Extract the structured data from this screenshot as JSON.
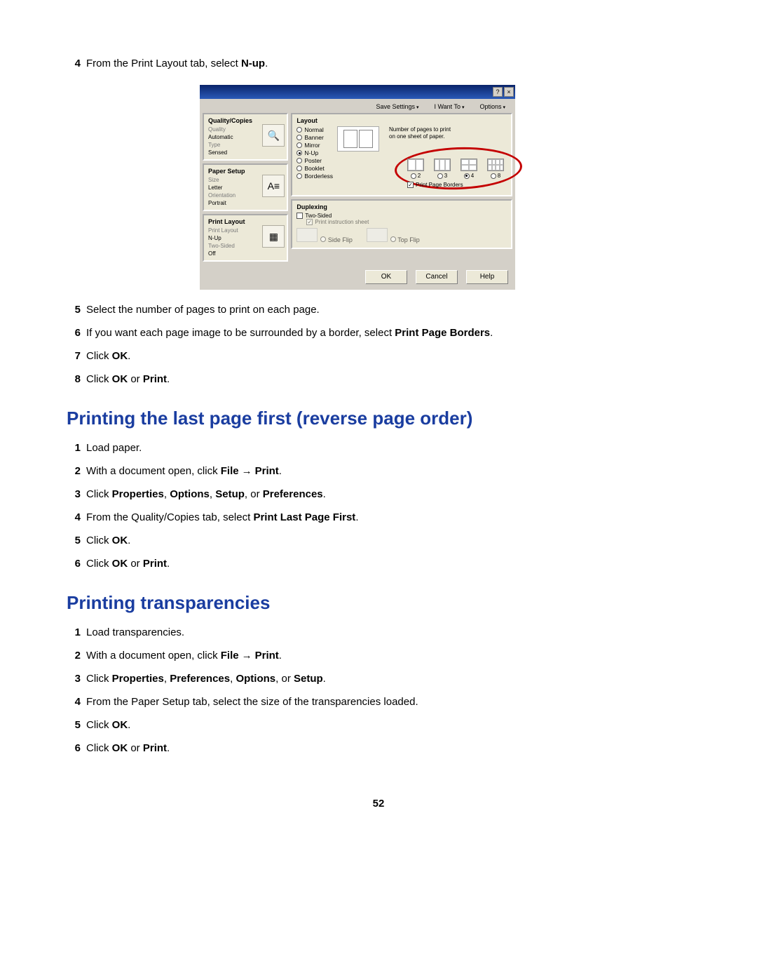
{
  "top_steps": [
    {
      "n": "4",
      "pre": "From the Print Layout tab, select ",
      "b": "N-up",
      "post": "."
    },
    {
      "n": "5",
      "pre": "Select the number of pages to print on each page.",
      "b": "",
      "post": ""
    },
    {
      "n": "6",
      "pre": "If you want each page image to be surrounded by a border, select ",
      "b": "Print Page Borders",
      "post": "."
    },
    {
      "n": "7",
      "pre": "Click ",
      "b": "OK",
      "post": "."
    },
    {
      "n": "8",
      "pre": "Click ",
      "b": "OK",
      "mid": " or ",
      "b2": "Print",
      "post": "."
    }
  ],
  "heading_reverse": "Printing the last page first (reverse page order)",
  "reverse_steps": [
    {
      "n": "1",
      "pre": "Load paper.",
      "b": "",
      "post": ""
    },
    {
      "n": "2",
      "pre": "With a document open, click ",
      "b": "File",
      "arrow": true,
      "b2": "Print",
      "post": "."
    },
    {
      "n": "3",
      "pre": "Click ",
      "b": "Properties",
      "mid": ", ",
      "b2": "Options",
      "mid2": ", ",
      "b3": "Setup",
      "mid3": ", or ",
      "b4": "Preferences",
      "post": "."
    },
    {
      "n": "4",
      "pre": "From the Quality/Copies tab, select ",
      "b": "Print Last Page First",
      "post": "."
    },
    {
      "n": "5",
      "pre": "Click ",
      "b": "OK",
      "post": "."
    },
    {
      "n": "6",
      "pre": "Click ",
      "b": "OK",
      "mid": " or ",
      "b2": "Print",
      "post": "."
    }
  ],
  "heading_trans": "Printing transparencies",
  "trans_steps": [
    {
      "n": "1",
      "pre": "Load transparencies.",
      "b": "",
      "post": ""
    },
    {
      "n": "2",
      "pre": "With a document open, click ",
      "b": "File",
      "arrow": true,
      "b2": "Print",
      "post": "."
    },
    {
      "n": "3",
      "pre": "Click ",
      "b": "Properties",
      "mid": ", ",
      "b2": "Preferences",
      "mid2": ", ",
      "b3": "Options",
      "mid3": ", or ",
      "b4": "Setup",
      "post": "."
    },
    {
      "n": "4",
      "pre": "From the Paper Setup tab, select the size of the transparencies loaded.",
      "b": "",
      "post": ""
    },
    {
      "n": "5",
      "pre": "Click ",
      "b": "OK",
      "post": "."
    },
    {
      "n": "6",
      "pre": "Click ",
      "b": "OK",
      "mid": " or ",
      "b2": "Print",
      "post": "."
    }
  ],
  "page_number": "52",
  "dialog": {
    "topmenu": [
      "Save Settings",
      "I Want To",
      "Options"
    ],
    "side": {
      "qc_title": "Quality/Copies",
      "qc_l1": "Quality",
      "qc_l2": "Automatic",
      "qc_l3": "Type",
      "qc_l4": "Sensed",
      "ps_title": "Paper Setup",
      "ps_l1": "Size",
      "ps_l2": "Letter",
      "ps_l3": "Orientation",
      "ps_l4": "Portrait",
      "pl_title": "Print Layout",
      "pl_l1": "Print Layout",
      "pl_l2": "N-Up",
      "pl_l3": "Two-Sided",
      "pl_l4": "Off"
    },
    "layout": {
      "group": "Layout",
      "opts": [
        "Normal",
        "Banner",
        "Mirror",
        "N-Up",
        "Poster",
        "Booklet",
        "Borderless"
      ],
      "desc": "Number of pages to print on one sheet of paper.",
      "nup_vals": [
        "2",
        "3",
        "4",
        "8"
      ],
      "ppb": "Print Page Borders"
    },
    "duplex": {
      "group": "Duplexing",
      "two": "Two-Sided",
      "instr": "Print instruction sheet",
      "side_flip": "Side Flip",
      "top_flip": "Top Flip"
    },
    "buttons": {
      "ok": "OK",
      "cancel": "Cancel",
      "help": "Help"
    }
  },
  "colors": {
    "heading": "#1a3da0",
    "ring": "#c40000",
    "titlebar_a": "#0a246a",
    "titlebar_b": "#2a5ab8",
    "dialog_bg": "#d4d0c8",
    "panel_bg": "#ece9d8"
  }
}
